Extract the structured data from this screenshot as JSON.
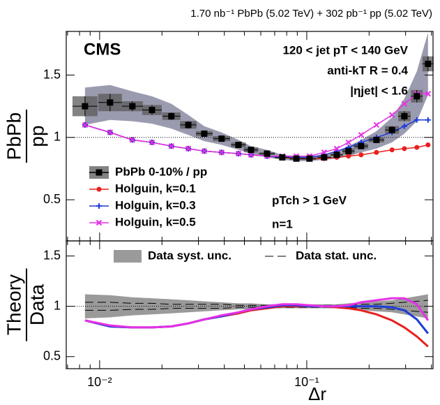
{
  "header": "1.70 nb⁻¹ PbPb (5.02 TeV) + 302 pb⁻¹ pp (5.02 TeV)",
  "chart_data": [
    {
      "type": "line",
      "y_label_top": "PbPb",
      "y_label_bottom": "pp",
      "annotations": [
        "CMS",
        "120 < jet pT < 140 GeV",
        "anti-kT R = 0.4",
        "|ηjet| < 1.6",
        "pTch > 1 GeV",
        "n=1"
      ],
      "log_x": true,
      "xlim": [
        0.0069,
        0.407
      ],
      "ylim": [
        0.17,
        1.85
      ],
      "yticks": [
        0.5,
        1,
        1.5
      ],
      "reference": 1,
      "x": [
        0.0085,
        0.01123,
        0.01439,
        0.0179,
        0.0222,
        0.0268,
        0.032,
        0.0388,
        0.0468,
        0.0538,
        0.0643,
        0.0762,
        0.0891,
        0.1031,
        0.1213,
        0.1396,
        0.159,
        0.183,
        0.217,
        0.258,
        0.296,
        0.34,
        0.385
      ],
      "series": [
        {
          "name": "PbPb 0-10% / pp",
          "color": "#000000",
          "marker": "square",
          "values": [
            1.25,
            1.28,
            1.25,
            1.22,
            1.17,
            1.1,
            1.03,
            0.99,
            0.94,
            0.9,
            0.87,
            0.84,
            0.83,
            0.83,
            0.84,
            0.86,
            0.89,
            0.93,
            0.98,
            1.06,
            1.17,
            1.33,
            1.59
          ],
          "stat": [
            0.08,
            0.07,
            0.04,
            0.04,
            0.03,
            0.03,
            0.02,
            0.02,
            0.02,
            0.02,
            0.01,
            0.01,
            0.01,
            0.01,
            0.01,
            0.01,
            0.02,
            0.02,
            0.02,
            0.03,
            0.04,
            0.05,
            0.06
          ],
          "syst": [
            0.15,
            0.14,
            0.12,
            0.11,
            0.1,
            0.08,
            0.06,
            0.05,
            0.04,
            0.03,
            0.03,
            0.02,
            0.02,
            0.02,
            0.02,
            0.03,
            0.04,
            0.05,
            0.07,
            0.1,
            0.14,
            0.2,
            0.25
          ]
        },
        {
          "name": "Holguin, k=0.1",
          "color": "#e8201e",
          "marker": "circle",
          "values": [
            1.1,
            1.04,
            0.98,
            0.96,
            0.93,
            0.91,
            0.89,
            0.88,
            0.87,
            0.86,
            0.85,
            0.84,
            0.83,
            0.83,
            0.83,
            0.84,
            0.85,
            0.86,
            0.88,
            0.9,
            0.91,
            0.92,
            0.94
          ]
        },
        {
          "name": "Holguin, k=0.3",
          "color": "#1e3cd8",
          "marker": "plus",
          "values": [
            1.1,
            1.04,
            0.98,
            0.96,
            0.93,
            0.91,
            0.89,
            0.88,
            0.87,
            0.86,
            0.85,
            0.84,
            0.84,
            0.84,
            0.86,
            0.89,
            0.92,
            0.96,
            1.0,
            1.04,
            1.09,
            1.14,
            1.14
          ]
        },
        {
          "name": "Holguin, k=0.5",
          "color": "#e630e6",
          "marker": "cross",
          "values": [
            1.1,
            1.04,
            0.98,
            0.96,
            0.93,
            0.91,
            0.89,
            0.88,
            0.87,
            0.86,
            0.85,
            0.85,
            0.85,
            0.85,
            0.88,
            0.91,
            0.96,
            1.02,
            1.1,
            1.18,
            1.27,
            1.35,
            1.35
          ]
        }
      ]
    },
    {
      "type": "ratio",
      "y_label_top": "Theory",
      "y_label_bottom": "Data",
      "x_label": "Δr",
      "log_x": true,
      "xlim": [
        0.0069,
        0.407
      ],
      "ylim": [
        0.38,
        1.65
      ],
      "yticks": [
        0.5,
        1,
        1.5
      ],
      "reference": 1,
      "xticks": [
        {
          "value": 0.01,
          "label": "10⁻²"
        },
        {
          "value": 0.1,
          "label": "10⁻¹"
        }
      ],
      "xminor": [
        0.007,
        0.008,
        0.009,
        0.02,
        0.03,
        0.04,
        0.05,
        0.06,
        0.07,
        0.08,
        0.09,
        0.2,
        0.3,
        0.4
      ],
      "band_legend": [
        "Data syst. unc.",
        "Data stat. unc."
      ],
      "x": [
        0.0085,
        0.01123,
        0.01439,
        0.0179,
        0.0222,
        0.0268,
        0.032,
        0.0388,
        0.0468,
        0.0538,
        0.0643,
        0.0762,
        0.0891,
        0.1031,
        0.1213,
        0.1396,
        0.159,
        0.183,
        0.217,
        0.258,
        0.296,
        0.34,
        0.385
      ],
      "syst": [
        0.12,
        0.11,
        0.09,
        0.08,
        0.07,
        0.06,
        0.05,
        0.04,
        0.03,
        0.03,
        0.02,
        0.02,
        0.02,
        0.02,
        0.02,
        0.02,
        0.03,
        0.04,
        0.05,
        0.06,
        0.08,
        0.1,
        0.12
      ],
      "stat": [
        0.04,
        0.04,
        0.03,
        0.03,
        0.02,
        0.02,
        0.02,
        0.02,
        0.01,
        0.01,
        0.01,
        0.01,
        0.01,
        0.01,
        0.01,
        0.01,
        0.01,
        0.02,
        0.02,
        0.03,
        0.04,
        0.05,
        0.06
      ],
      "series": [
        {
          "color": "#e8201e",
          "values": [
            0.86,
            0.8,
            0.79,
            0.79,
            0.8,
            0.83,
            0.87,
            0.9,
            0.93,
            0.96,
            0.98,
            1.0,
            1.0,
            1.0,
            1.0,
            0.99,
            0.98,
            0.96,
            0.92,
            0.86,
            0.79,
            0.7,
            0.6
          ]
        },
        {
          "color": "#1e3cd8",
          "values": [
            0.86,
            0.8,
            0.79,
            0.79,
            0.8,
            0.83,
            0.87,
            0.9,
            0.94,
            0.97,
            0.99,
            1.01,
            1.01,
            1.0,
            1.0,
            1.0,
            1.0,
            1.0,
            1.0,
            0.99,
            0.96,
            0.87,
            0.73
          ]
        },
        {
          "color": "#e630e6",
          "values": [
            0.86,
            0.81,
            0.79,
            0.79,
            0.8,
            0.83,
            0.87,
            0.91,
            0.94,
            0.97,
            1.0,
            1.02,
            1.02,
            1.01,
            1.0,
            1.0,
            1.01,
            1.04,
            1.06,
            1.08,
            1.08,
            1.02,
            0.86
          ]
        }
      ]
    }
  ]
}
